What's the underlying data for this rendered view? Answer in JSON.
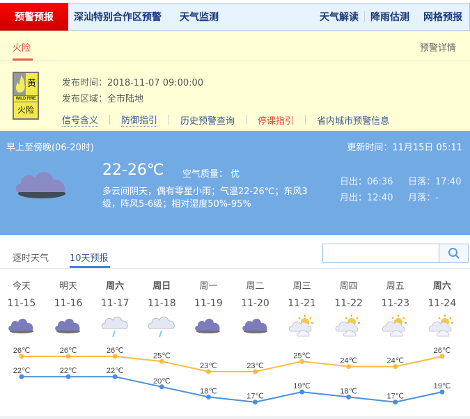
{
  "topnav": {
    "active": "预警预报",
    "items": [
      "深汕特别合作区预警",
      "天气监测"
    ],
    "right": [
      "天气解读",
      "降雨估测",
      "网格预报"
    ]
  },
  "warning": {
    "tab": "火险",
    "detail_link": "预警详情",
    "badge": {
      "level": "黄",
      "en": "WILD FIRE",
      "cn": "火险",
      "color": "#f2ea4c"
    },
    "time_label": "发布时间：",
    "time": "2018-11-07 09:00:00",
    "area_label": "发布区域：",
    "area": "全市陆地",
    "links": [
      "信号含义",
      "防御指引",
      "历史预警查询",
      "停课指引",
      "省内城市预警信息"
    ]
  },
  "today": {
    "period": "早上至傍晚(06-20时)",
    "updated": "更新时间：11月15日 05:11",
    "temp": "22-26℃",
    "aqi": "空气质量： 优",
    "desc1": "多云间阴天，偶有零星小雨；气温22-26℃；东风3",
    "desc2": "级，阵风5-6级；相对湿度50%-95%",
    "sunrise": "日出：06:36",
    "sunset": "日落：17:40",
    "moonrise": "月出：12:40",
    "moonset": "月落：-",
    "icon": "cloudy-icon"
  },
  "tabs": [
    "逐时天气",
    "10天预报"
  ],
  "search": {
    "placeholder": "",
    "icon": "search-icon"
  },
  "forecast": [
    {
      "day": "今天",
      "date": "11-15",
      "icon": "cloudy"
    },
    {
      "day": "明天",
      "date": "11-16",
      "icon": "cloudy"
    },
    {
      "day": "周六",
      "date": "11-17",
      "icon": "light-rain"
    },
    {
      "day": "周日",
      "date": "11-18",
      "icon": "light-rain"
    },
    {
      "day": "周一",
      "date": "11-19",
      "icon": "cloudy"
    },
    {
      "day": "周二",
      "date": "11-20",
      "icon": "cloudy"
    },
    {
      "day": "周三",
      "date": "11-21",
      "icon": "partly-cloudy"
    },
    {
      "day": "周四",
      "date": "11-22",
      "icon": "partly-cloudy"
    },
    {
      "day": "周五",
      "date": "11-23",
      "icon": "partly-cloudy"
    },
    {
      "day": "周六",
      "date": "11-24",
      "icon": "partly-cloudy"
    }
  ],
  "chart_data": {
    "type": "line",
    "categories": [
      "11-15",
      "11-16",
      "11-17",
      "11-18",
      "11-19",
      "11-20",
      "11-21",
      "11-22",
      "11-23",
      "11-24"
    ],
    "unit": "℃",
    "series": [
      {
        "values": [
          26,
          26,
          26,
          25,
          23,
          23,
          25,
          24,
          24,
          26
        ],
        "color": "#ffbb44"
      },
      {
        "values": [
          22,
          22,
          22,
          20,
          18,
          17,
          19,
          18,
          17,
          19
        ],
        "color": "#4a90dc"
      }
    ]
  }
}
